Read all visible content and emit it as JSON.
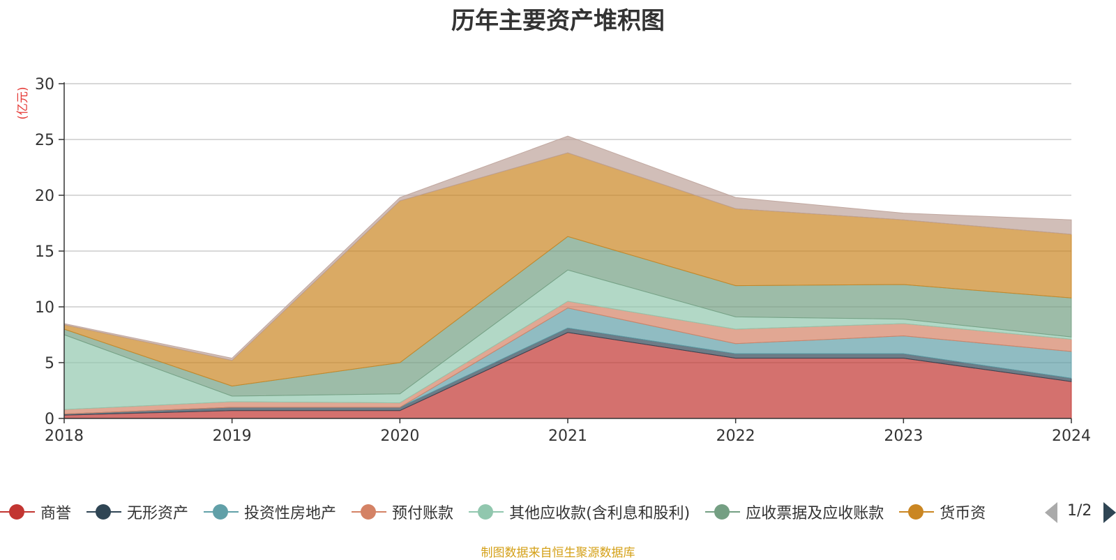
{
  "chart_data": {
    "type": "area",
    "title": "历年主要资产堆积图",
    "unit_label": "(亿元)",
    "categories": [
      "2018",
      "2019",
      "2020",
      "2021",
      "2022",
      "2023",
      "2024"
    ],
    "y_ticks": [
      "0",
      "5",
      "10",
      "15",
      "20",
      "25",
      "30"
    ],
    "ylim": [
      0,
      30
    ],
    "grid": true,
    "stacked": true,
    "legend_position": "bottom",
    "series": [
      {
        "name": "商誉",
        "color": "#c23531",
        "values": [
          0.3,
          0.7,
          0.7,
          7.7,
          5.4,
          5.4,
          3.3
        ]
      },
      {
        "name": "无形资产",
        "color": "#2f4554",
        "values": [
          0.1,
          0.3,
          0.3,
          0.4,
          0.4,
          0.4,
          0.3
        ]
      },
      {
        "name": "投资性房地产",
        "color": "#61a0a8",
        "values": [
          0.0,
          0.0,
          0.0,
          1.8,
          0.9,
          1.6,
          2.4
        ]
      },
      {
        "name": "预付账款",
        "color": "#d48265",
        "values": [
          0.4,
          0.5,
          0.4,
          0.6,
          1.3,
          1.1,
          1.1
        ]
      },
      {
        "name": "其他应收款(含利息和股利)",
        "color": "#91c7ae",
        "values": [
          6.7,
          0.5,
          0.8,
          2.8,
          1.1,
          0.4,
          0.2
        ]
      },
      {
        "name": "应收票据及应收账款",
        "color": "#749f83",
        "values": [
          0.5,
          0.9,
          2.8,
          3.0,
          2.8,
          3.1,
          3.5
        ]
      },
      {
        "name": "货币资金",
        "color": "#ca8622",
        "values": [
          0.4,
          2.3,
          14.5,
          7.5,
          6.9,
          5.8,
          5.7
        ]
      },
      {
        "name": "",
        "color": "#bda29a",
        "values": [
          0.1,
          0.2,
          0.3,
          1.5,
          1.0,
          0.6,
          1.3
        ]
      }
    ],
    "legend": {
      "page_text": "1/2",
      "visible_last_label": "货币资"
    },
    "source_text": "制图数据来自恒生聚源数据库"
  }
}
